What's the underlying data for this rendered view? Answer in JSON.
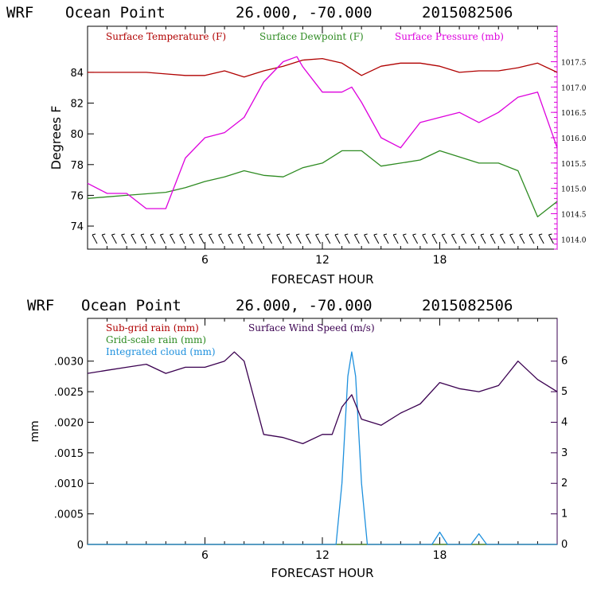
{
  "chart_data": [
    {
      "type": "line",
      "title": {
        "model": "WRF",
        "location": "Ocean Point",
        "coords": "26.000, -70.000",
        "init": "2015082506"
      },
      "xlabel": "FORECAST HOUR",
      "ylabel": "Degrees F",
      "xlim": [
        0,
        24
      ],
      "x_ticks": [
        "6",
        "12",
        "18"
      ],
      "left_axis": {
        "ylim": [
          72.5,
          87
        ],
        "ticks": [
          "74",
          "76",
          "78",
          "80",
          "82",
          "84"
        ]
      },
      "right_axis": {
        "ylim": [
          1013.8,
          1018.2
        ],
        "ticks": [
          "1014.0",
          "1014.5",
          "1015.0",
          "1015.5",
          "1016.0",
          "1016.5",
          "1017.0",
          "1017.5"
        ]
      },
      "wind_barbs": "calm barbs along bottom axis",
      "series": [
        {
          "name": "Surface Temperature (F)",
          "axis": "left",
          "color": "#b00000",
          "x": [
            0,
            1,
            2,
            3,
            4,
            5,
            6,
            7,
            8,
            9,
            10,
            11,
            12,
            13,
            14,
            15,
            16,
            17,
            18,
            19,
            20,
            21,
            22,
            23,
            24
          ],
          "values": [
            84.0,
            84.0,
            84.0,
            84.0,
            83.9,
            83.8,
            83.8,
            84.1,
            83.7,
            84.1,
            84.4,
            84.8,
            84.9,
            84.6,
            83.8,
            84.4,
            84.6,
            84.6,
            84.4,
            84.0,
            84.1,
            84.1,
            84.3,
            84.6,
            84.0
          ]
        },
        {
          "name": "Surface Dewpoint (F)",
          "axis": "left",
          "color": "#2e8b22",
          "x": [
            0,
            1,
            2,
            3,
            4,
            5,
            6,
            7,
            8,
            9,
            10,
            11,
            12,
            13,
            14,
            15,
            16,
            17,
            18,
            19,
            20,
            21,
            22,
            23,
            24
          ],
          "values": [
            75.8,
            75.9,
            76.0,
            76.1,
            76.2,
            76.5,
            76.9,
            77.2,
            77.6,
            77.3,
            77.2,
            77.8,
            78.1,
            78.9,
            78.9,
            77.9,
            78.1,
            78.3,
            78.9,
            78.5,
            78.1,
            78.1,
            77.6,
            74.6,
            75.6
          ]
        },
        {
          "name": "Surface Pressure (mb)",
          "axis": "right",
          "color": "#dd00dd",
          "x": [
            0,
            1,
            2,
            3,
            4,
            5,
            6,
            7,
            8,
            9,
            10,
            10.7,
            11,
            12,
            13,
            13.5,
            14,
            15,
            16,
            17,
            18,
            19,
            20,
            21,
            22,
            23,
            24
          ],
          "values": [
            1015.1,
            1014.9,
            1014.9,
            1014.6,
            1014.6,
            1015.6,
            1016.0,
            1016.1,
            1016.4,
            1017.1,
            1017.5,
            1017.6,
            1017.4,
            1016.9,
            1016.9,
            1017.0,
            1016.7,
            1016.0,
            1015.8,
            1016.3,
            1016.4,
            1016.5,
            1016.3,
            1016.5,
            1016.8,
            1016.9,
            1015.8
          ]
        }
      ]
    },
    {
      "type": "line",
      "title": {
        "model": "WRF",
        "location": "Ocean Point",
        "coords": "26.000, -70.000",
        "init": "2015082506"
      },
      "xlabel": "FORECAST HOUR",
      "ylabel": "mm",
      "xlim": [
        0,
        24
      ],
      "x_ticks": [
        "6",
        "12",
        "18"
      ],
      "left_axis": {
        "ylim": [
          0,
          0.0037
        ],
        "ticks": [
          "0",
          ".0005",
          ".0010",
          ".0015",
          ".0020",
          ".0025",
          ".0030"
        ]
      },
      "right_axis": {
        "ylim": [
          0,
          7.4
        ],
        "ticks": [
          "0",
          "1",
          "2",
          "3",
          "4",
          "5",
          "6"
        ]
      },
      "series": [
        {
          "name": "Sub-grid rain (mm)",
          "axis": "left",
          "color": "#b00000",
          "x": [
            0,
            24
          ],
          "values": [
            0,
            0
          ]
        },
        {
          "name": "Grid-scale rain (mm)",
          "axis": "left",
          "color": "#2e8b22",
          "x": [
            0,
            24
          ],
          "values": [
            0,
            0
          ]
        },
        {
          "name": "Integrated cloud (mm)",
          "axis": "right",
          "color": "#1e90dd",
          "x": [
            0,
            12.7,
            13.0,
            13.3,
            13.5,
            13.7,
            14.0,
            14.3,
            17.6,
            18.0,
            18.4,
            19.6,
            20.0,
            20.4,
            24
          ],
          "values": [
            0,
            0,
            2.0,
            5.5,
            6.3,
            5.5,
            2.0,
            0,
            0,
            0.4,
            0,
            0,
            0.35,
            0,
            0
          ]
        },
        {
          "name": "Surface Wind Speed (m/s)",
          "axis": "right",
          "color": "#3a0050",
          "x": [
            0,
            1,
            2,
            3,
            4,
            5,
            6,
            7,
            7.5,
            8,
            9,
            10,
            11,
            12,
            12.5,
            13,
            13.5,
            14,
            15,
            16,
            17,
            18,
            19,
            20,
            21,
            22,
            23,
            24
          ],
          "values": [
            5.6,
            5.7,
            5.8,
            5.9,
            5.6,
            5.8,
            5.8,
            6.0,
            6.3,
            6.0,
            3.6,
            3.5,
            3.3,
            3.6,
            3.6,
            4.5,
            4.9,
            4.1,
            3.9,
            4.3,
            4.6,
            5.3,
            5.1,
            5.0,
            5.2,
            6.0,
            5.4,
            5.0
          ]
        }
      ]
    }
  ]
}
